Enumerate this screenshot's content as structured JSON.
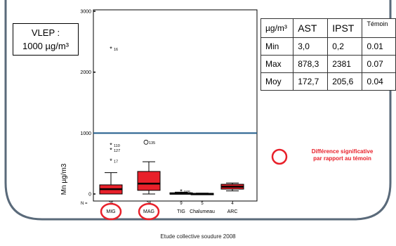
{
  "chart_data": {
    "type": "box",
    "ylabel": "Mn µg/m3",
    "ylim": [
      0,
      3000
    ],
    "yticks": [
      0,
      1000,
      2000,
      3000
    ],
    "n_label": "N =",
    "categories": [
      "MIG",
      "MAG",
      "TIG",
      "Chalumeau",
      "ARC"
    ],
    "n_values": [
      "25",
      "26",
      "9",
      "5",
      "4"
    ],
    "boxes": [
      {
        "name": "MIG",
        "whisker_low": 0,
        "q1": 0,
        "median": 80,
        "q3": 150,
        "whisker_high": 350
      },
      {
        "name": "MAG",
        "whisker_low": 0,
        "q1": 60,
        "median": 170,
        "q3": 370,
        "whisker_high": 530
      },
      {
        "name": "TIG",
        "whisker_low": 0,
        "q1": 0,
        "median": 5,
        "q3": 20,
        "whisker_high": 30
      },
      {
        "name": "Chalumeau",
        "whisker_low": 0,
        "q1": 0,
        "median": 3,
        "q3": 10,
        "whisker_high": 15
      },
      {
        "name": "ARC",
        "whisker_low": 50,
        "q1": 80,
        "median": 120,
        "q3": 160,
        "whisker_high": 180
      }
    ],
    "outliers": [
      {
        "category": "MIG",
        "y": 2380,
        "label": "16",
        "marker": "star"
      },
      {
        "category": "MIG",
        "y": 800,
        "label": "110",
        "marker": "star"
      },
      {
        "category": "MIG",
        "y": 720,
        "label": "127",
        "marker": "star"
      },
      {
        "category": "MIG",
        "y": 540,
        "label": "17",
        "marker": "star"
      },
      {
        "category": "MAG",
        "y": 850,
        "label": "135",
        "marker": "circle"
      },
      {
        "category": "TIG",
        "y": 40,
        "label": "105",
        "marker": "star"
      }
    ],
    "reference_line": {
      "y": 1000,
      "color": "#1f5b8a"
    },
    "box_color": "#e8202a",
    "highlighted_categories": [
      "MIG",
      "MAG"
    ]
  },
  "vlep": {
    "line1": "VLEP :",
    "line2": "1000 µg/m³"
  },
  "stats_table": {
    "headers": [
      "µg/m³",
      "AST",
      "IPST",
      "Témoin"
    ],
    "rows": [
      {
        "label": "Min",
        "ast": "3,0",
        "ipst": "0,2",
        "temoin": "0.01"
      },
      {
        "label": "Max",
        "ast": "878,3",
        "ipst": "2381",
        "temoin": "0.07"
      },
      {
        "label": "Moy",
        "ast": "172,7",
        "ipst": "205,6",
        "temoin": "0.04"
      }
    ]
  },
  "significance_note": {
    "line1": "Différence significative",
    "line2": "par rapport au témoin",
    "color": "#e8202a"
  },
  "caption": "Etude collective soudure 2008",
  "frame_color": "#5a6a7a"
}
